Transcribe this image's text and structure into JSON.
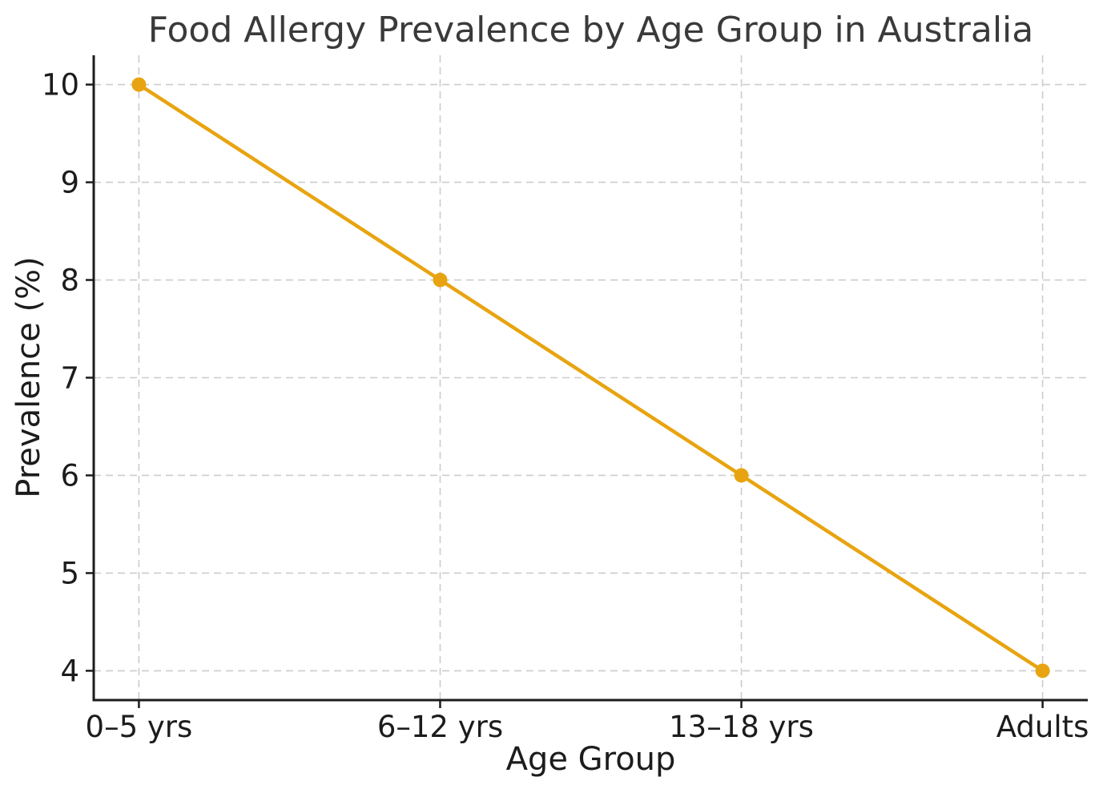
{
  "chart_data": {
    "type": "line",
    "title": "Food Allergy Prevalence by Age Group in Australia",
    "xlabel": "Age Group",
    "ylabel": "Prevalence (%)",
    "categories": [
      "0–5 yrs",
      "6–12 yrs",
      "13–18 yrs",
      "Adults"
    ],
    "series": [
      {
        "name": "Prevalence (%)",
        "values": [
          10,
          8,
          6,
          4
        ]
      }
    ],
    "ylim": [
      3.7,
      10.3
    ],
    "yticks": [
      4,
      5,
      6,
      7,
      8,
      9,
      10
    ],
    "x_margin_units": 0.15,
    "grid": true,
    "grid_style": "dashed",
    "legend": "none",
    "marker": "circle",
    "colors": {
      "line": "#E8A410",
      "marker": "#E8A410",
      "grid": "#CCCCCC",
      "axis": "#1C1C1C",
      "tick_label": "#1C1C1C",
      "title": "#3A3A3A",
      "background": "#FFFFFF"
    }
  }
}
